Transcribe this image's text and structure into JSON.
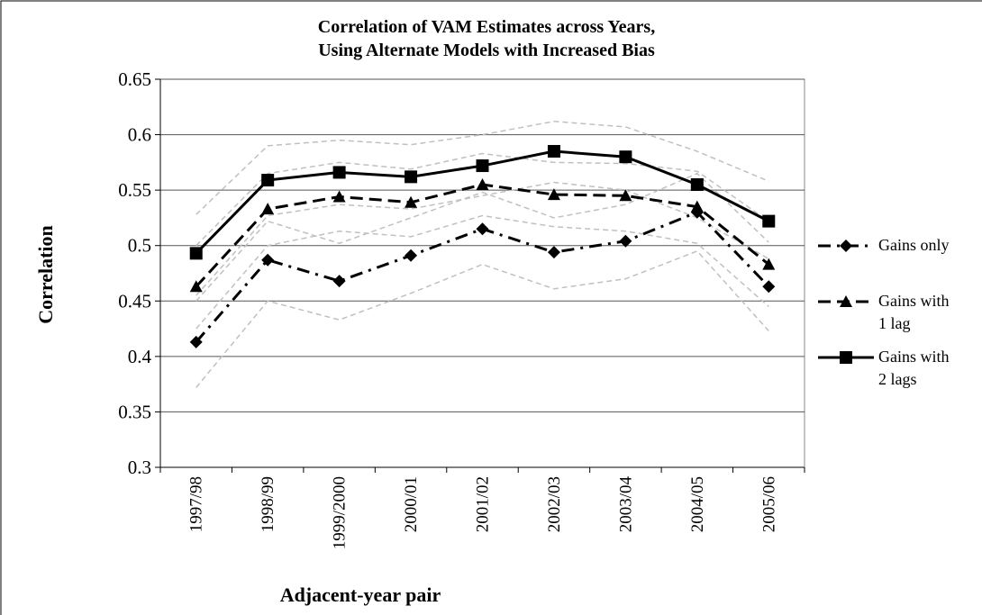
{
  "chart_data": {
    "type": "line",
    "title": [
      "Correlation of VAM Estimates across Years,",
      "Using Alternate Models with Increased Bias"
    ],
    "x_label": "Adjacent-year pair",
    "y_label": "Correlation",
    "categories": [
      "1997/98",
      "1998/99",
      "1999/2000",
      "2000/01",
      "2001/02",
      "2002/03",
      "2003/04",
      "2004/05",
      "2005/06"
    ],
    "ylim": [
      0.3,
      0.65
    ],
    "yticks": [
      0.3,
      0.35,
      0.4,
      0.45,
      0.5,
      0.55,
      0.6,
      0.65
    ],
    "grid": true,
    "legend": "right",
    "series": [
      {
        "color": "#c0c0c0",
        "dash": "6 4",
        "values": [
          0.372,
          0.45,
          0.433,
          0.457,
          0.483,
          0.461,
          0.47,
          0.495,
          0.423
        ]
      },
      {
        "color": "#c0c0c0",
        "dash": "6 4",
        "values": [
          0.45,
          0.522,
          0.502,
          0.525,
          0.548,
          0.525,
          0.537,
          0.565,
          0.503
        ]
      },
      {
        "color": "#c0c0c0",
        "dash": "6 4",
        "values": [
          0.425,
          0.5,
          0.513,
          0.508,
          0.527,
          0.517,
          0.513,
          0.502,
          0.445
        ]
      },
      {
        "color": "#c0c0c0",
        "dash": "6 4",
        "values": [
          0.5,
          0.565,
          0.575,
          0.569,
          0.583,
          0.575,
          0.574,
          0.567,
          0.522
        ]
      },
      {
        "color": "#c0c0c0",
        "dash": "6 4",
        "values": [
          0.455,
          0.527,
          0.537,
          0.533,
          0.545,
          0.557,
          0.55,
          0.525,
          0.488
        ]
      },
      {
        "color": "#c0c0c0",
        "dash": "6 4",
        "values": [
          0.528,
          0.59,
          0.595,
          0.591,
          0.6,
          0.612,
          0.607,
          0.585,
          0.558
        ]
      },
      {
        "name": "Gains only",
        "color": "#000000",
        "dash": "14 7 3 7",
        "marker": "diamond",
        "values": [
          0.413,
          0.487,
          0.468,
          0.491,
          0.515,
          0.494,
          0.504,
          0.53,
          0.463
        ]
      },
      {
        "name": "Gains with 1 lag",
        "color": "#000000",
        "dash": "14 7",
        "marker": "triangle",
        "values": [
          0.463,
          0.533,
          0.544,
          0.539,
          0.555,
          0.546,
          0.545,
          0.535,
          0.483
        ]
      },
      {
        "name": "Gains with 2 lags",
        "color": "#000000",
        "marker": "square",
        "values": [
          0.493,
          0.559,
          0.566,
          0.562,
          0.572,
          0.585,
          0.58,
          0.555,
          0.522
        ]
      }
    ]
  }
}
